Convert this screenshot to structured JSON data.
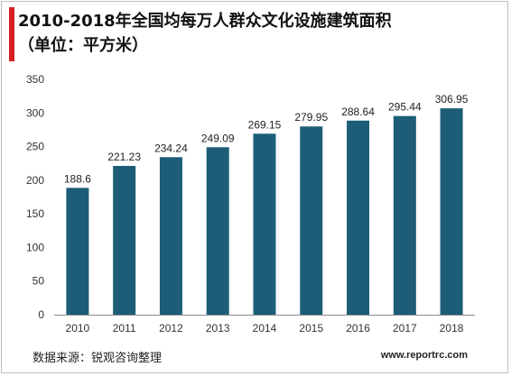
{
  "page": {
    "title": "2010-2018年全国均每万人群众文化设施建筑面积（单位：平方米）",
    "source": "数据来源：锐观咨询整理",
    "website": "www.reportrc.com"
  },
  "colors": {
    "bar": "#1d5d77",
    "title_accent": "#d62020",
    "axis": "#8c8c8c"
  },
  "chart_data": {
    "type": "bar",
    "title": "2010-2018年全国均每万人群众文化设施建筑面积（单位：平方米）",
    "xlabel": "",
    "ylabel": "",
    "categories": [
      "2010",
      "2011",
      "2012",
      "2013",
      "2014",
      "2015",
      "2016",
      "2017",
      "2018"
    ],
    "values": [
      188.6,
      221.23,
      234.24,
      249.09,
      269.15,
      279.95,
      288.64,
      295.44,
      306.95
    ],
    "value_labels": [
      "188.6",
      "221.23",
      "234.24",
      "249.09",
      "269.15",
      "279.95",
      "288.64",
      "295.44",
      "306.95"
    ],
    "ylim": [
      0,
      350
    ],
    "yticks": [
      "0",
      "50",
      "100",
      "150",
      "200",
      "250",
      "300",
      "350"
    ],
    "grid": false,
    "legend": "none"
  }
}
